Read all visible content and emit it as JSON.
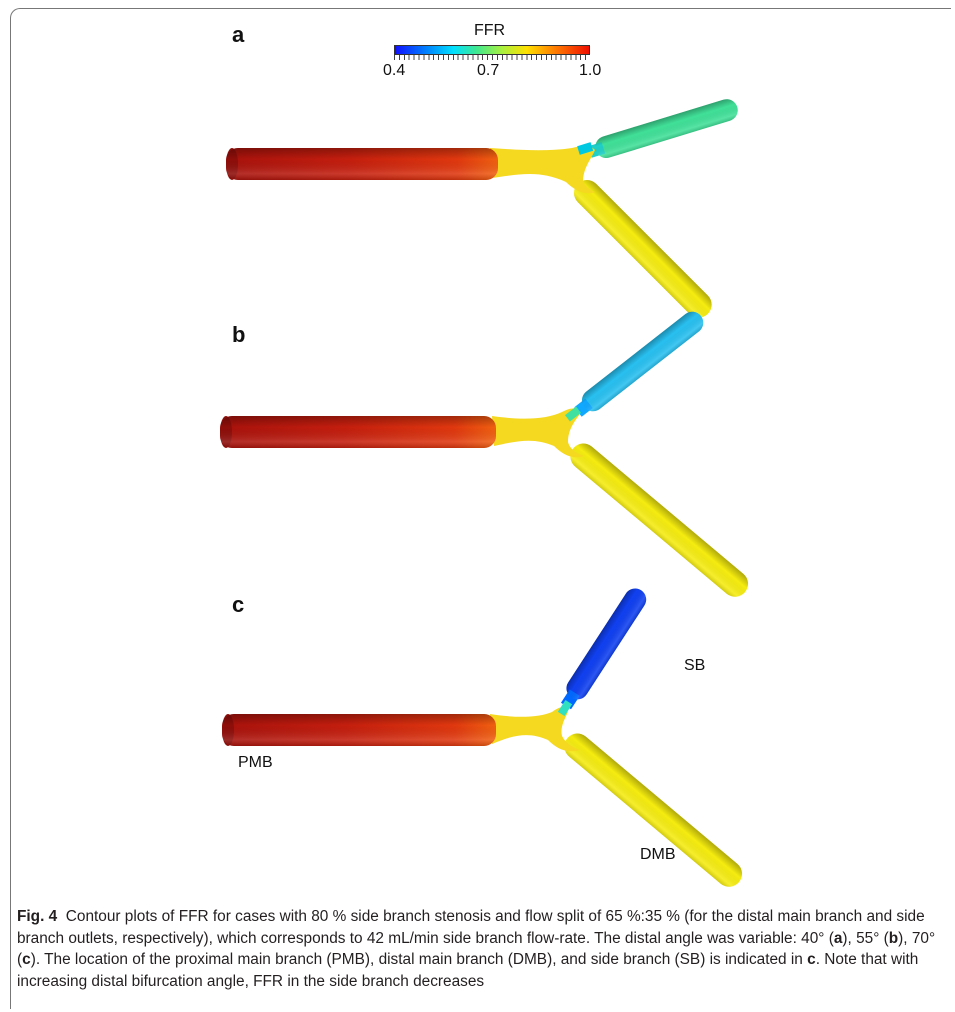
{
  "colorbar": {
    "title": "FFR",
    "ticks": [
      "0.4",
      "0.7",
      "1.0"
    ],
    "colors": [
      "#1010ff",
      "#0080ff",
      "#00e0ff",
      "#a8f040",
      "#ffe000",
      "#ff8000",
      "#f01000"
    ]
  },
  "panels": [
    {
      "letter": "a",
      "sb_color": "#40e098",
      "dmb_color": "#f5ec10",
      "pmb_color": "#d83a12",
      "joint_color": "#f5d820"
    },
    {
      "letter": "b",
      "sb_color": "#28c0f0",
      "dmb_color": "#f5ec10",
      "pmb_color": "#d83a12",
      "joint_color": "#f5d820"
    },
    {
      "letter": "c",
      "sb_color": "#1040f0",
      "dmb_color": "#f5ec10",
      "pmb_color": "#d83a12",
      "joint_color": "#f5d820"
    }
  ],
  "labels": {
    "sb": "SB",
    "pmb": "PMB",
    "dmb": "DMB"
  },
  "caption": {
    "fig_label": "Fig. 4",
    "seg1": "Contour plots of FFR for cases with 80 % side branch stenosis and flow split of 65 %:35 % (for the distal main branch and side branch outlets, respectively), which corresponds to 42 mL/min side branch flow-rate. The distal angle was variable: 40° (",
    "bold_a": "a",
    "seg2": "), 55° (",
    "bold_b": "b",
    "seg3": "), 70° (",
    "bold_c": "c",
    "seg4": "). The location of the proximal main branch (PMB), distal main branch (DMB), and side branch (SB) is indicated in ",
    "bold_c2": "c",
    "seg5": ". Note that with increasing distal bifurcation angle, FFR in the side branch decreases"
  }
}
